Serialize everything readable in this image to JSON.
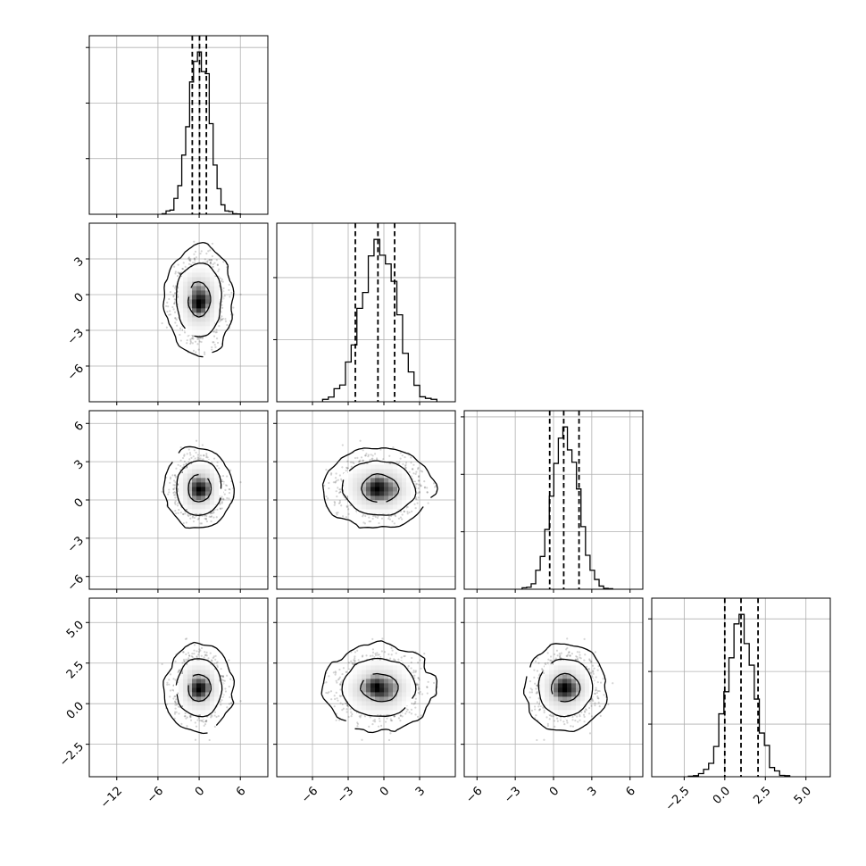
{
  "chart_data": {
    "type": "corner",
    "description_of_layout": "4x4 lower-triangular corner plot",
    "variables": [
      {
        "range": [
          -16,
          10
        ],
        "ticks": [
          -12,
          -6,
          0,
          6
        ],
        "tick_labels": [
          "−12",
          "−6",
          "0",
          "6"
        ],
        "mean": 0,
        "sd": 1.5,
        "quantiles": [
          -1.0,
          0.05,
          1.05
        ]
      },
      {
        "range": [
          -9,
          6
        ],
        "ticks": [
          -6,
          -3,
          0,
          3
        ],
        "tick_labels": [
          "−6",
          "−3",
          "0",
          "3"
        ],
        "mean": -0.4,
        "sd": 1.5,
        "quantiles": [
          -2.4,
          -0.5,
          0.9
        ]
      },
      {
        "range": [
          -7,
          7
        ],
        "ticks": [
          -6,
          -3,
          0,
          3,
          6
        ],
        "tick_labels": [
          "−6",
          "−3",
          "0",
          "3",
          "6"
        ],
        "mean": 0.9,
        "sd": 1.0,
        "quantiles": [
          -0.3,
          0.8,
          2.0
        ]
      },
      {
        "range": [
          -4.5,
          6.5
        ],
        "ticks": [
          -2.5,
          0.0,
          2.5,
          5.0
        ],
        "tick_labels": [
          "−2.5",
          "0.0",
          "2.5",
          "5.0"
        ],
        "mean": 1.0,
        "sd": 0.85,
        "quantiles": [
          0.0,
          1.0,
          2.05
        ]
      }
    ],
    "bins": 20,
    "contour_levels": [
      0.39,
      0.86,
      0.99
    ],
    "samples": 4000,
    "grid": true
  }
}
